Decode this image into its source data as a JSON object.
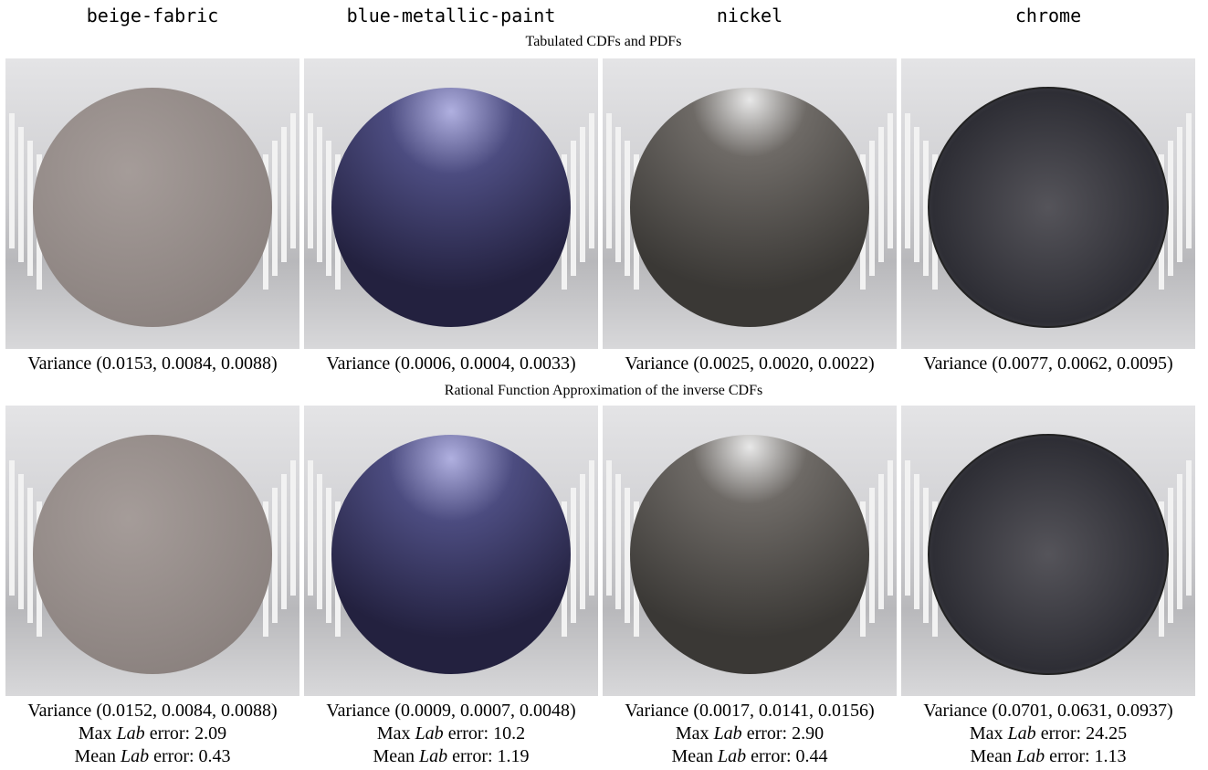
{
  "columns": [
    "beige-fabric",
    "blue-metallic-paint",
    "nickel",
    "chrome"
  ],
  "labels": {
    "variance": "Variance",
    "max": "Max",
    "mean": "Mean",
    "lab": "Lab",
    "error": "error:"
  },
  "rows": [
    {
      "title": "Tabulated CDFs and PDFs",
      "variance": [
        "(0.0153, 0.0084, 0.0088)",
        "(0.0006, 0.0004, 0.0033)",
        "(0.0025, 0.0020, 0.0022)",
        "(0.0077, 0.0062, 0.0095)"
      ]
    },
    {
      "title": "Rational Function Approximation of the inverse CDFs",
      "variance": [
        "(0.0152, 0.0084, 0.0088)",
        "(0.0009, 0.0007, 0.0048)",
        "(0.0017, 0.0141, 0.0156)",
        "(0.0701, 0.0631, 0.0937)"
      ],
      "max_lab_error": [
        "2.09",
        "10.2",
        "2.90",
        "24.25"
      ],
      "mean_lab_error": [
        "0.43",
        "1.19",
        "0.44",
        "1.13"
      ]
    }
  ]
}
